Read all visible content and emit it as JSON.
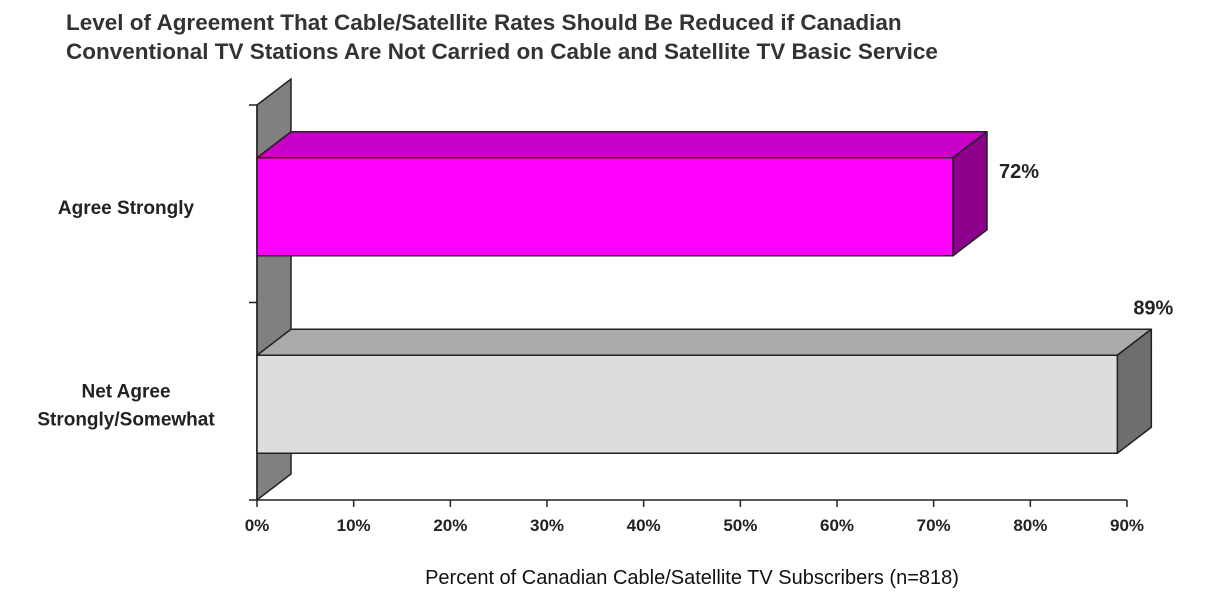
{
  "chart_data": {
    "type": "bar",
    "orientation": "horizontal",
    "style": "3d",
    "title_lines": [
      "Level of Agreement That Cable/Satellite Rates Should Be Reduced if Canadian",
      "Conventional TV Stations Are Not Carried on Cable and Satellite TV Basic Service"
    ],
    "categories": [
      [
        "Agree Strongly"
      ],
      [
        "Net Agree",
        "Strongly/Somewhat"
      ]
    ],
    "values": [
      72,
      89
    ],
    "data_labels": [
      "72%",
      "89%"
    ],
    "colors": [
      {
        "front": "#ff00ff",
        "top": "#c800c8",
        "side": "#8c008c"
      },
      {
        "front": "#dddddd",
        "top": "#aaaaaa",
        "side": "#6e6e6e"
      }
    ],
    "xlim": [
      0,
      90
    ],
    "xticks": [
      0,
      10,
      20,
      30,
      40,
      50,
      60,
      70,
      80,
      90
    ],
    "xtick_labels": [
      "0%",
      "10%",
      "20%",
      "30%",
      "40%",
      "50%",
      "60%",
      "70%",
      "80%",
      "90%"
    ],
    "xlabel": "Percent of Canadian Cable/Satellite TV Subscribers (n=818)",
    "ylabel": "",
    "grid": false,
    "legend": "none"
  }
}
